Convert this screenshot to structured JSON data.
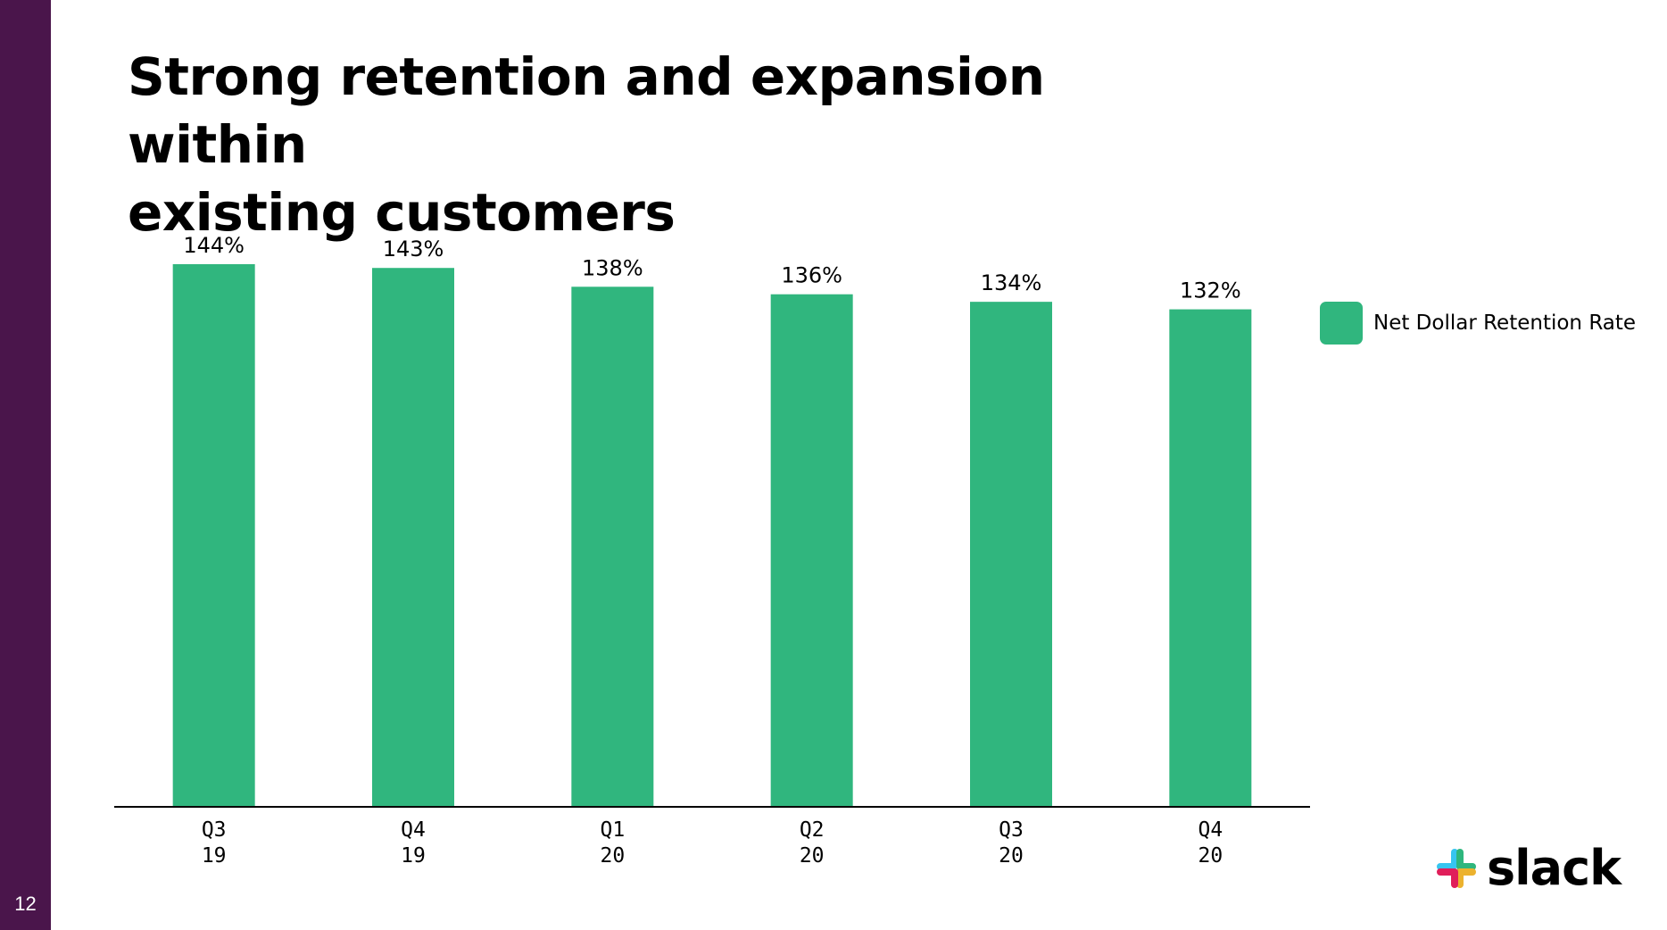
{
  "page_number": "12",
  "title_lines": [
    "Strong retention and expansion within",
    "existing customers"
  ],
  "brand": {
    "wordmark": "slack",
    "icon": "slack-logo-icon"
  },
  "colors": {
    "sidebar": "#4a154b",
    "bar": "#30b67e",
    "axis": "#000000"
  },
  "chart_data": {
    "type": "bar",
    "categories": [
      [
        "Q3",
        "19"
      ],
      [
        "Q4",
        "19"
      ],
      [
        "Q1",
        "20"
      ],
      [
        "Q2",
        "20"
      ],
      [
        "Q3",
        "20"
      ],
      [
        "Q4",
        "20"
      ]
    ],
    "series": [
      {
        "name": "Net Dollar Retention Rate",
        "values": [
          144,
          143,
          138,
          136,
          134,
          132
        ],
        "color": "#30b67e"
      }
    ],
    "data_labels": [
      "144%",
      "143%",
      "138%",
      "136%",
      "134%",
      "132%"
    ],
    "legend": "right",
    "grid": false,
    "ylim": [
      0,
      144
    ]
  }
}
